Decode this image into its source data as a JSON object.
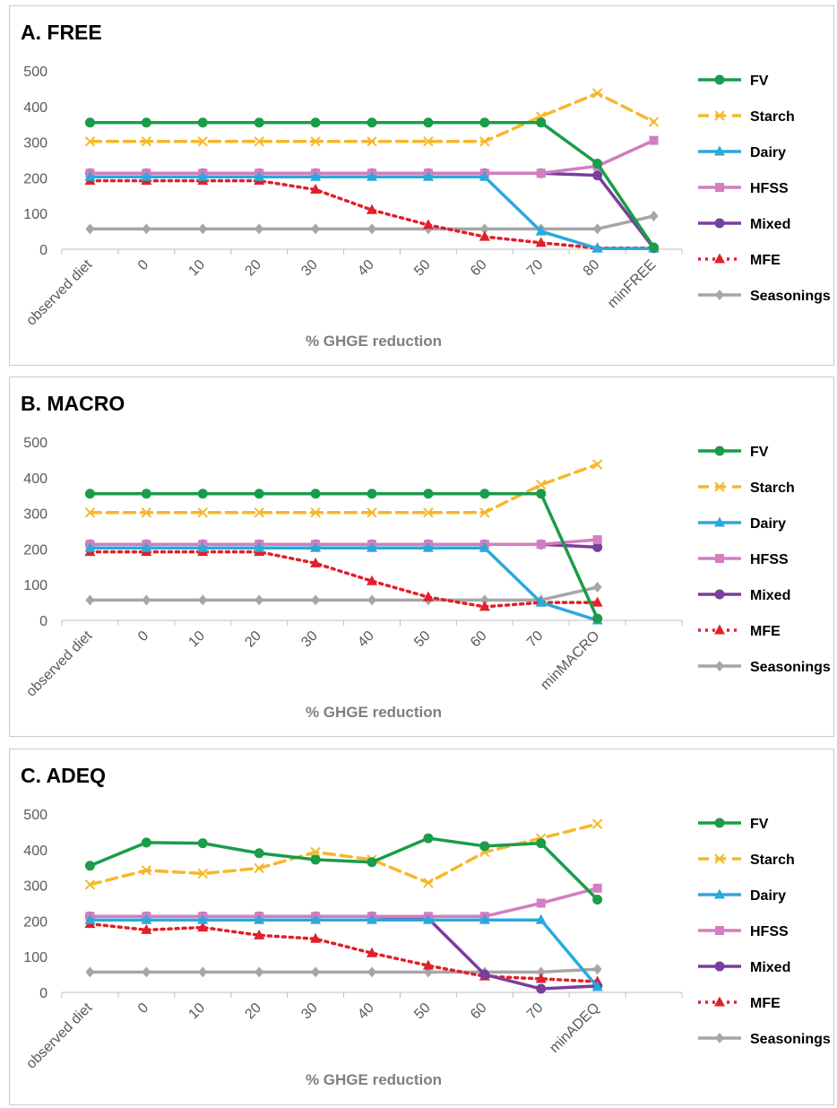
{
  "chart_data": [
    {
      "type": "line",
      "title": "A. FREE",
      "xlabel": "% GHGE reduction",
      "ylabel": "",
      "ylim": [
        0,
        500
      ],
      "yticks": [
        "0",
        "100",
        "200",
        "300",
        "400",
        "500"
      ],
      "grid": false,
      "legend_position": "right",
      "categories": [
        "observed diet",
        "0",
        "10",
        "20",
        "30",
        "40",
        "50",
        "60",
        "70",
        "80",
        "minFREE"
      ],
      "series": [
        {
          "name": "FV",
          "values": [
            355,
            355,
            355,
            355,
            355,
            355,
            355,
            355,
            355,
            240,
            5
          ]
        },
        {
          "name": "Starch",
          "values": [
            302,
            302,
            302,
            302,
            302,
            302,
            302,
            302,
            372,
            437,
            357
          ]
        },
        {
          "name": "Dairy",
          "values": [
            203,
            203,
            203,
            203,
            203,
            203,
            203,
            203,
            50,
            2,
            2
          ]
        },
        {
          "name": "HFSS",
          "values": [
            213,
            213,
            213,
            213,
            213,
            213,
            213,
            213,
            213,
            233,
            305
          ]
        },
        {
          "name": "Mixed",
          "values": [
            213,
            213,
            213,
            213,
            213,
            213,
            213,
            213,
            213,
            207,
            3
          ]
        },
        {
          "name": "MFE",
          "values": [
            192,
            192,
            192,
            192,
            167,
            110,
            68,
            35,
            18,
            3,
            3
          ]
        },
        {
          "name": "Seasonings",
          "values": [
            57,
            57,
            57,
            57,
            57,
            57,
            57,
            57,
            57,
            57,
            93
          ]
        }
      ]
    },
    {
      "type": "line",
      "title": "B. MACRO",
      "xlabel": "% GHGE reduction",
      "ylabel": "",
      "ylim": [
        0,
        500
      ],
      "yticks": [
        "0",
        "100",
        "200",
        "300",
        "400",
        "500"
      ],
      "grid": false,
      "legend_position": "right",
      "categories": [
        "observed diet",
        "0",
        "10",
        "20",
        "30",
        "40",
        "50",
        "60",
        "70",
        "minMACRO"
      ],
      "series": [
        {
          "name": "FV",
          "values": [
            355,
            355,
            355,
            355,
            355,
            355,
            355,
            355,
            355,
            5
          ]
        },
        {
          "name": "Starch",
          "values": [
            302,
            302,
            302,
            302,
            302,
            302,
            302,
            302,
            380,
            437
          ]
        },
        {
          "name": "Dairy",
          "values": [
            203,
            203,
            203,
            203,
            203,
            203,
            203,
            203,
            50,
            0
          ]
        },
        {
          "name": "HFSS",
          "values": [
            213,
            213,
            213,
            213,
            213,
            213,
            213,
            213,
            213,
            226
          ]
        },
        {
          "name": "Mixed",
          "values": [
            213,
            213,
            213,
            213,
            213,
            213,
            213,
            213,
            213,
            205
          ]
        },
        {
          "name": "MFE",
          "values": [
            192,
            192,
            192,
            192,
            160,
            110,
            65,
            38,
            50,
            50
          ]
        },
        {
          "name": "Seasonings",
          "values": [
            57,
            57,
            57,
            57,
            57,
            57,
            57,
            57,
            57,
            93
          ]
        }
      ]
    },
    {
      "type": "line",
      "title": "C. ADEQ",
      "xlabel": "% GHGE reduction",
      "ylabel": "",
      "ylim": [
        0,
        500
      ],
      "yticks": [
        "0",
        "100",
        "200",
        "300",
        "400",
        "500"
      ],
      "grid": false,
      "legend_position": "right",
      "categories": [
        "observed diet",
        "0",
        "10",
        "20",
        "30",
        "40",
        "50",
        "60",
        "70",
        "minADEQ"
      ],
      "series": [
        {
          "name": "FV",
          "values": [
            355,
            420,
            418,
            390,
            372,
            365,
            432,
            410,
            418,
            260
          ]
        },
        {
          "name": "Starch",
          "values": [
            302,
            342,
            333,
            348,
            393,
            372,
            307,
            393,
            432,
            472
          ]
        },
        {
          "name": "Dairy",
          "values": [
            203,
            203,
            203,
            203,
            203,
            203,
            203,
            203,
            203,
            15
          ]
        },
        {
          "name": "HFSS",
          "values": [
            213,
            213,
            213,
            213,
            213,
            213,
            213,
            213,
            250,
            292
          ]
        },
        {
          "name": "Mixed",
          "values": [
            213,
            213,
            213,
            213,
            213,
            213,
            207,
            50,
            10,
            18
          ]
        },
        {
          "name": "MFE",
          "values": [
            192,
            175,
            182,
            160,
            150,
            110,
            75,
            45,
            38,
            30
          ]
        },
        {
          "name": "Seasonings",
          "values": [
            57,
            57,
            57,
            57,
            57,
            57,
            57,
            57,
            57,
            65
          ]
        }
      ]
    }
  ],
  "series_styles": {
    "FV": {
      "color": "#1a9c4a",
      "dash": "",
      "marker": "circle"
    },
    "Starch": {
      "color": "#f5b829",
      "dash": "12,7",
      "marker": "x"
    },
    "Dairy": {
      "color": "#2aa9dc",
      "dash": "",
      "marker": "triangle"
    },
    "HFSS": {
      "color": "#d27ec0",
      "dash": "",
      "marker": "square"
    },
    "Mixed": {
      "color": "#7a3e9c",
      "dash": "",
      "marker": "circle"
    },
    "MFE": {
      "color": "#e0202a",
      "dash": "3,5",
      "marker": "triangle"
    },
    "Seasonings": {
      "color": "#a6a6a6",
      "dash": "",
      "marker": "diamond"
    }
  }
}
